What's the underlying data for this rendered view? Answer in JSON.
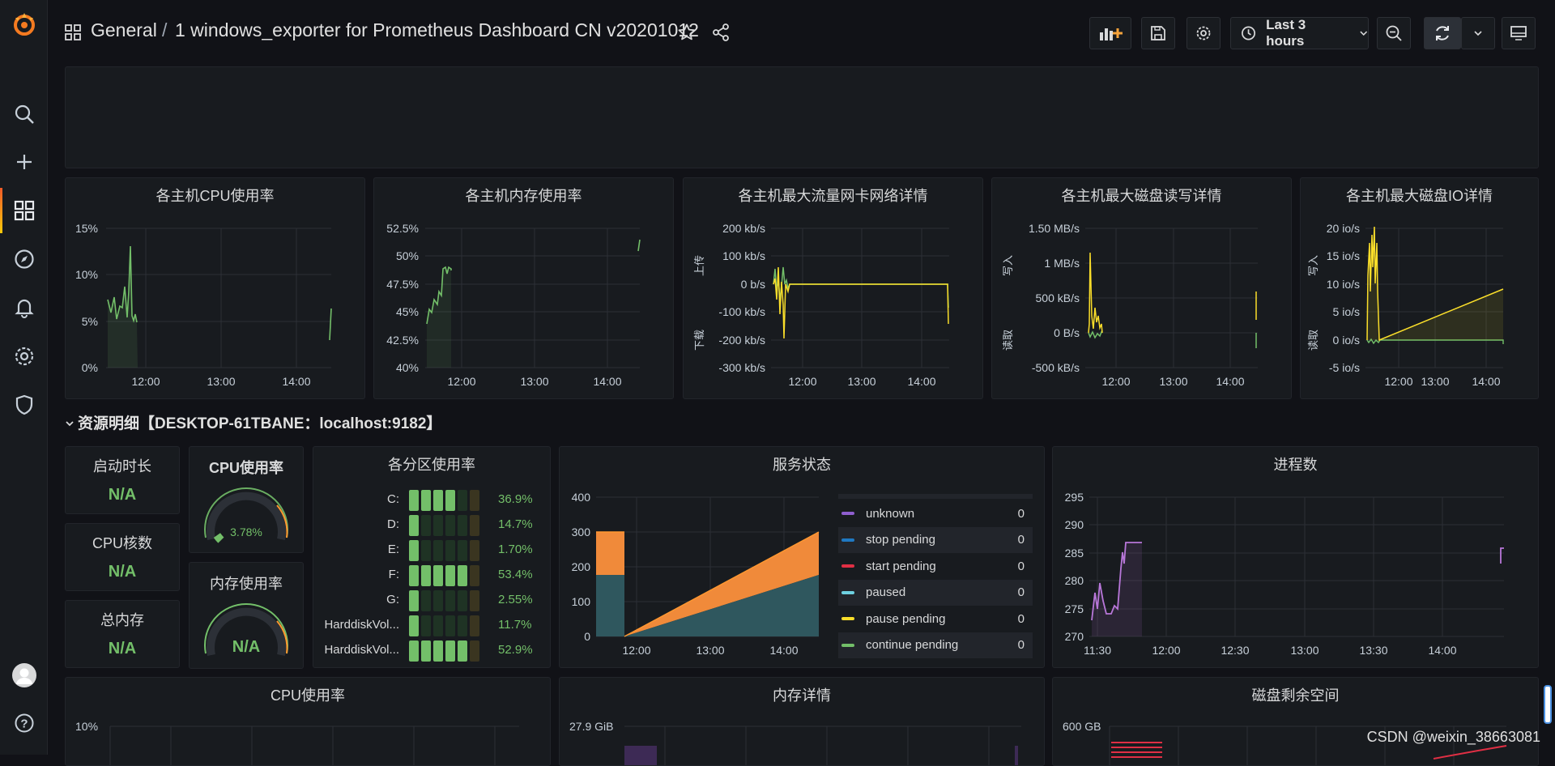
{
  "topbar": {
    "grid_icon": "grid-icon",
    "folder": "General",
    "separator": "/",
    "dashboard_title": "1 windows_exporter for Prometheus Dashboard CN v20201012",
    "time_range": "Last 3 hours"
  },
  "sidebar": {
    "items": [
      "grafana-logo",
      "search-icon",
      "plus-icon",
      "dashboards-icon",
      "explore-icon",
      "alert-bell-icon",
      "gear-icon",
      "shield-icon",
      "avatar",
      "help-icon"
    ]
  },
  "row_panels": [
    {
      "title": "各主机CPU使用率",
      "yticks": [
        "15%",
        "10%",
        "5%",
        "0%"
      ],
      "xticks": [
        "12:00",
        "13:00",
        "14:00"
      ]
    },
    {
      "title": "各主机内存使用率",
      "yticks": [
        "52.5%",
        "50%",
        "47.5%",
        "45%",
        "42.5%",
        "40%"
      ],
      "xticks": [
        "12:00",
        "13:00",
        "14:00"
      ]
    },
    {
      "title": "各主机最大流量网卡网络详情",
      "yticks": [
        "200 kb/s",
        "100 kb/s",
        "0 b/s",
        "-100 kb/s",
        "-200 kb/s",
        "-300 kb/s"
      ],
      "xticks": [
        "12:00",
        "13:00",
        "14:00"
      ],
      "ylabel_top": "上传",
      "ylabel_bottom": "下载"
    },
    {
      "title": "各主机最大磁盘读写详情",
      "yticks": [
        "1.50 MB/s",
        "1 MB/s",
        "500 kB/s",
        "0 B/s",
        "-500 kB/s"
      ],
      "xticks": [
        "12:00",
        "13:00",
        "14:00"
      ],
      "ylabel_top": "写入",
      "ylabel_bottom": "读取"
    },
    {
      "title": "各主机最大磁盘IO详情",
      "yticks": [
        "20 io/s",
        "15 io/s",
        "10 io/s",
        "5 io/s",
        "0 io/s",
        "-5 io/s"
      ],
      "xticks": [
        "12:00",
        "13:00",
        "14:00"
      ],
      "ylabel_top": "写入",
      "ylabel_bottom": "读取"
    }
  ],
  "section": {
    "title": "资源明细【DESKTOP-61TBANE：localhost:9182】"
  },
  "stats": {
    "uptime_title": "启动时长",
    "uptime_value": "N/A",
    "cores_title": "CPU核数",
    "cores_value": "N/A",
    "memtotal_title": "总内存",
    "memtotal_value": "N/A"
  },
  "gauges": {
    "cpu_title": "CPU使用率",
    "cpu_value": "3.78%",
    "cpu_fraction": 0.0378,
    "mem_title": "内存使用率",
    "mem_value": "N/A"
  },
  "partitions": {
    "title": "各分区使用率",
    "rows": [
      {
        "name": "C:",
        "value": "36.9%",
        "fraction": 0.369
      },
      {
        "name": "D:",
        "value": "14.7%",
        "fraction": 0.147
      },
      {
        "name": "E:",
        "value": "1.70%",
        "fraction": 0.017
      },
      {
        "name": "F:",
        "value": "53.4%",
        "fraction": 0.534
      },
      {
        "name": "G:",
        "value": "2.55%",
        "fraction": 0.0255
      },
      {
        "name": "HarddiskVol...",
        "value": "11.7%",
        "fraction": 0.117
      },
      {
        "name": "HarddiskVol...",
        "value": "52.9%",
        "fraction": 0.529
      }
    ]
  },
  "services": {
    "title": "服务状态",
    "yticks": [
      "400",
      "300",
      "200",
      "100",
      "0"
    ],
    "xticks": [
      "12:00",
      "13:00",
      "14:00"
    ],
    "legend": [
      {
        "label": "unknown",
        "value": "0",
        "color": "#8f5fcf"
      },
      {
        "label": "stop pending",
        "value": "0",
        "color": "#1f78c1"
      },
      {
        "label": "start pending",
        "value": "0",
        "color": "#e02f44"
      },
      {
        "label": "paused",
        "value": "0",
        "color": "#6ed0e0"
      },
      {
        "label": "pause pending",
        "value": "0",
        "color": "#fade2a"
      },
      {
        "label": "continue pending",
        "value": "0",
        "color": "#73bf69"
      }
    ]
  },
  "processes": {
    "title": "进程数",
    "yticks": [
      "295",
      "290",
      "285",
      "280",
      "275",
      "270"
    ],
    "xticks": [
      "11:30",
      "12:00",
      "12:30",
      "13:00",
      "13:30",
      "14:00"
    ]
  },
  "bottom": {
    "cpu_title": "CPU使用率",
    "cpu_ytick": "10%",
    "mem_title": "内存详情",
    "mem_ytick": "27.9 GiB",
    "disk_title": "磁盘剩余空间",
    "disk_ytick": "600 GB"
  },
  "watermark": "CSDN @weixin_38663081",
  "colors": {
    "green": "#73bf69",
    "yellow": "#fade2a",
    "orange": "#ff9830",
    "teal": "#2f575e",
    "purple": "#b877d9",
    "brand": "#f05a28"
  }
}
